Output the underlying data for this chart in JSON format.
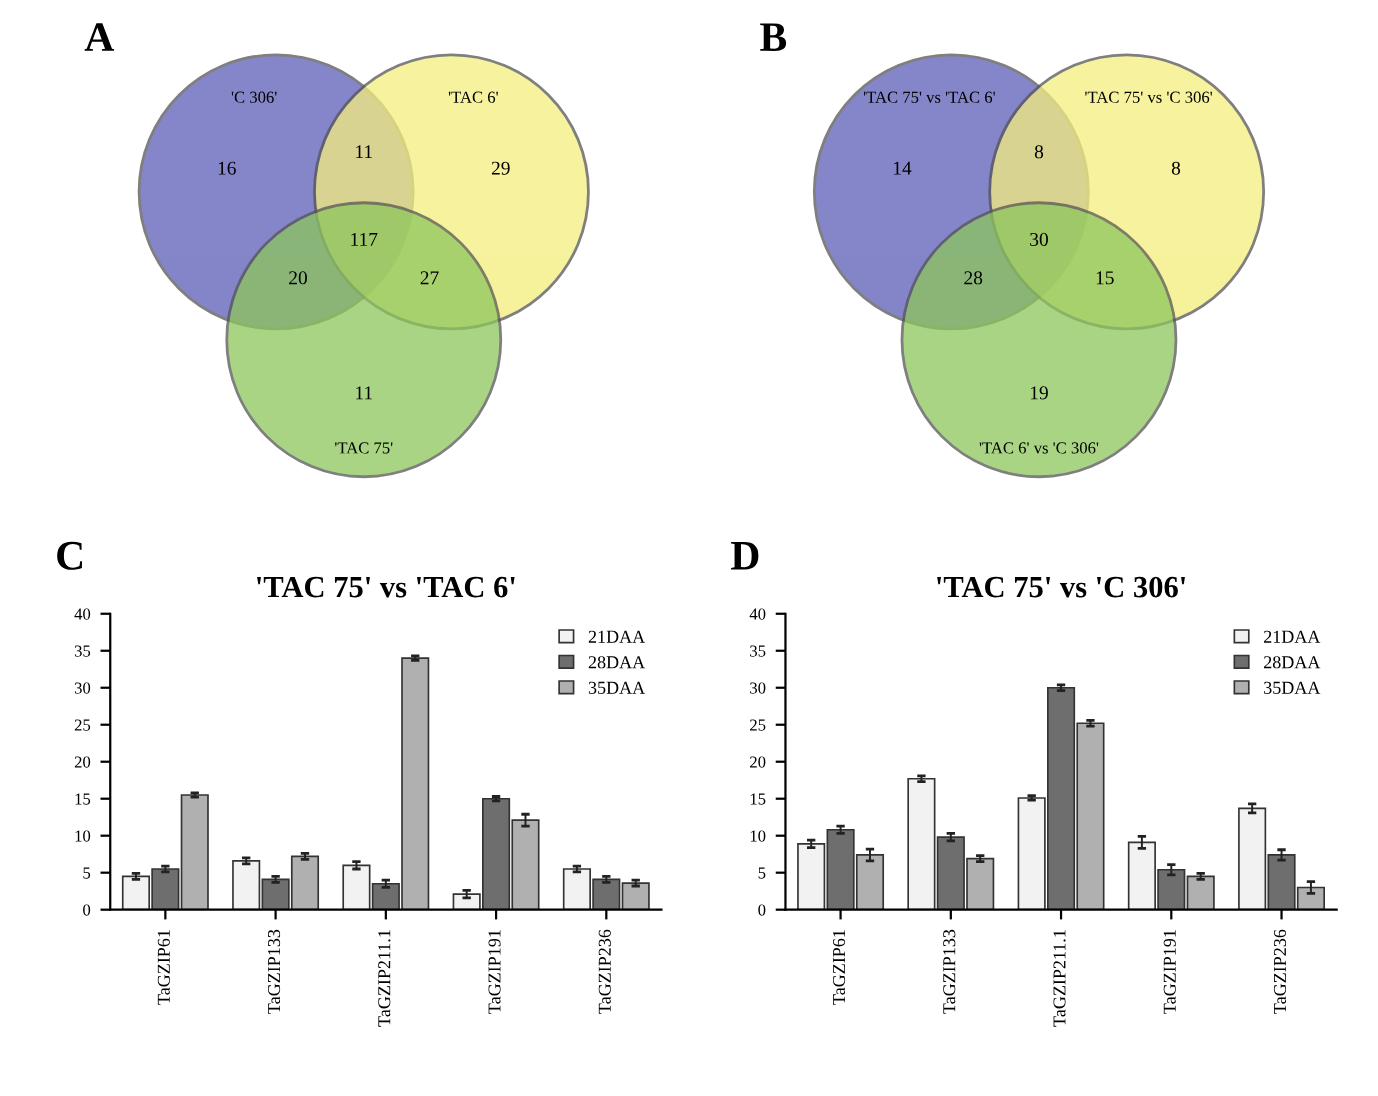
{
  "chart_data": [
    {
      "type": "other",
      "annotations": [
        "A",
        "11",
        "20",
        "27",
        "117"
      ],
      "categories": [
        "'C 306'",
        "'TAC 6'",
        "'TAC 75'"
      ],
      "colors": [
        "#5c5cb8",
        "#f4ee7c",
        "#8dc65c"
      ],
      "values": [
        16,
        29,
        11
      ],
      "data_labels": true
    },
    {
      "type": "other",
      "annotations": [
        "B",
        "8",
        "28",
        "15",
        "30"
      ],
      "categories": [
        "'TAC 75' vs 'TAC 6'",
        "'TAC 75' vs 'C 306'",
        "'TAC 6' vs 'C 306'"
      ],
      "colors": [
        "#5c5cb8",
        "#f4ee7c",
        "#8dc65c"
      ],
      "values": [
        14,
        8,
        19
      ],
      "data_labels": true
    },
    {
      "type": "bar",
      "annotations": [
        "C"
      ],
      "title": "'TAC 75' vs 'TAC 6'",
      "categories": [
        "TaGZIP61",
        "TaGZIP133",
        "TaGZIP211.1",
        "TaGZIP191",
        "TaGZIP236"
      ],
      "series": [
        {
          "name": "21DAA",
          "color": "#f2f2f2",
          "values": [
            4.5,
            6.6,
            6.0,
            2.1,
            5.5
          ],
          "errors": [
            0.4,
            0.4,
            0.5,
            0.5,
            0.4
          ]
        },
        {
          "name": "28DAA",
          "color": "#6e6e6e",
          "values": [
            5.5,
            4.1,
            3.5,
            15.0,
            4.1
          ],
          "errors": [
            0.4,
            0.4,
            0.5,
            0.3,
            0.4
          ]
        },
        {
          "name": "35DAA",
          "color": "#b0b0b0",
          "values": [
            15.5,
            7.2,
            34,
            12.1,
            3.6
          ],
          "errors": [
            0.3,
            0.4,
            0.3,
            0.8,
            0.4
          ]
        }
      ],
      "ylim": [
        0,
        40
      ],
      "yticks": [
        0,
        5,
        10,
        15,
        20,
        25,
        30,
        35,
        40
      ],
      "grid": false,
      "legend": "top right"
    },
    {
      "type": "bar",
      "annotations": [
        "D"
      ],
      "title": "'TAC 75' vs 'C 306'",
      "categories": [
        "TaGZIP61",
        "TaGZIP133",
        "TaGZIP211.1",
        "TaGZIP191",
        "TaGZIP236"
      ],
      "series": [
        {
          "name": "21DAA",
          "color": "#f2f2f2",
          "values": [
            8.9,
            17.7,
            15.1,
            9.1,
            13.7
          ],
          "errors": [
            0.5,
            0.4,
            0.3,
            0.8,
            0.6
          ]
        },
        {
          "name": "28DAA",
          "color": "#6e6e6e",
          "values": [
            10.8,
            9.8,
            30.0,
            5.4,
            7.4
          ],
          "errors": [
            0.5,
            0.5,
            0.4,
            0.7,
            0.7
          ]
        },
        {
          "name": "35DAA",
          "color": "#b0b0b0",
          "values": [
            7.4,
            6.9,
            25.2,
            4.5,
            3.0
          ],
          "errors": [
            0.8,
            0.4,
            0.4,
            0.4,
            0.8
          ]
        }
      ],
      "ylim": [
        0,
        40
      ],
      "yticks": [
        0,
        5,
        10,
        15,
        20,
        25,
        30,
        35,
        40
      ],
      "grid": false,
      "legend": "top right"
    }
  ]
}
